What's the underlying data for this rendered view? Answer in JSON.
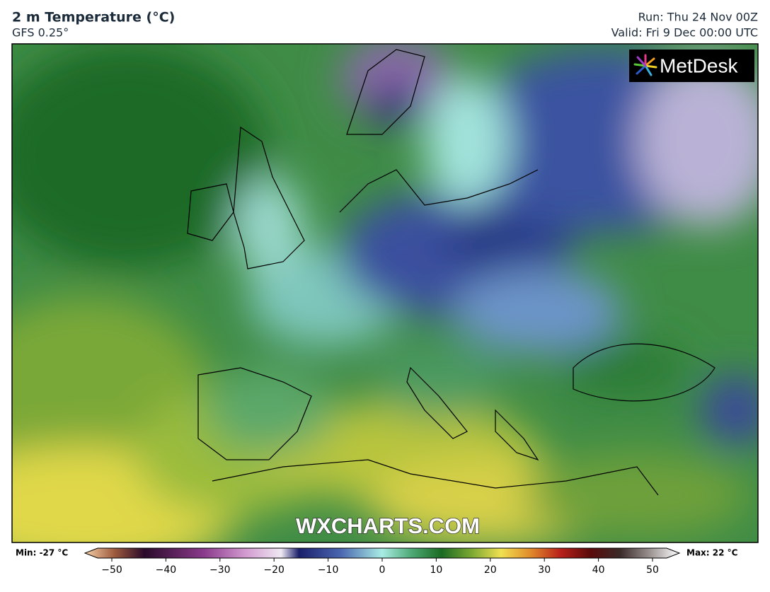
{
  "header": {
    "title": "2 m Temperature (°C)",
    "model": "GFS 0.25°",
    "run": "Run: Thu 24 Nov 00Z",
    "valid": "Valid: Fri 9 Dec 00:00 UTC"
  },
  "logo": "MetDesk",
  "watermark": "WXCHARTS.COM",
  "colorbar": {
    "min_label": "Min: -27 °C",
    "max_label": "Max: 22 °C",
    "ticks": [
      {
        "value": -50,
        "label": "−50"
      },
      {
        "value": -40,
        "label": "−40"
      },
      {
        "value": -30,
        "label": "−30"
      },
      {
        "value": -20,
        "label": "−20"
      },
      {
        "value": -10,
        "label": "−10"
      },
      0,
      10,
      20,
      30,
      40,
      50
    ]
  }
}
